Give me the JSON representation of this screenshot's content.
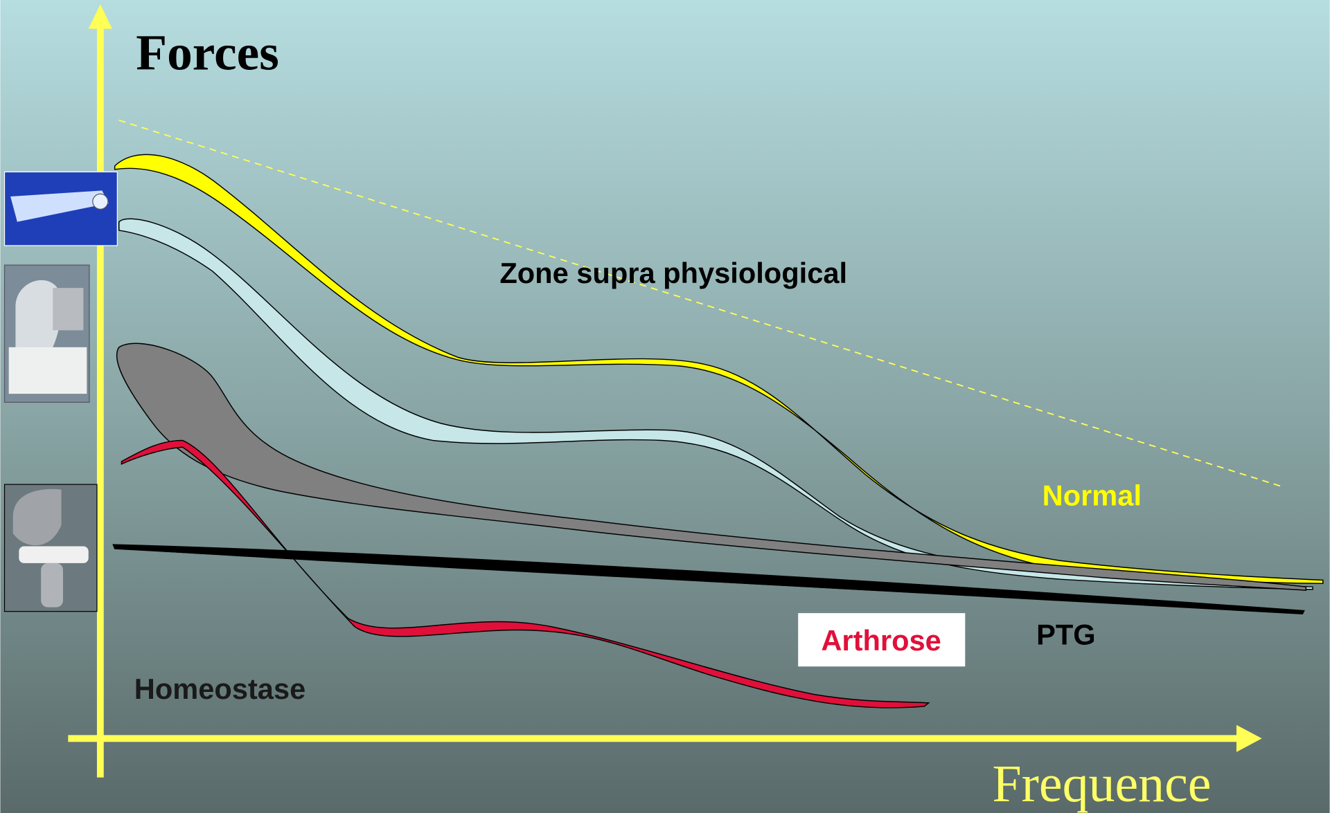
{
  "title": "Forces",
  "axis_label": "Frequence",
  "labels": {
    "zone": "Zone supra physiological",
    "normal": "Normal",
    "arthrose": "Arthrose",
    "ptg": "PTG",
    "homeostase": "Homeostase"
  }
}
